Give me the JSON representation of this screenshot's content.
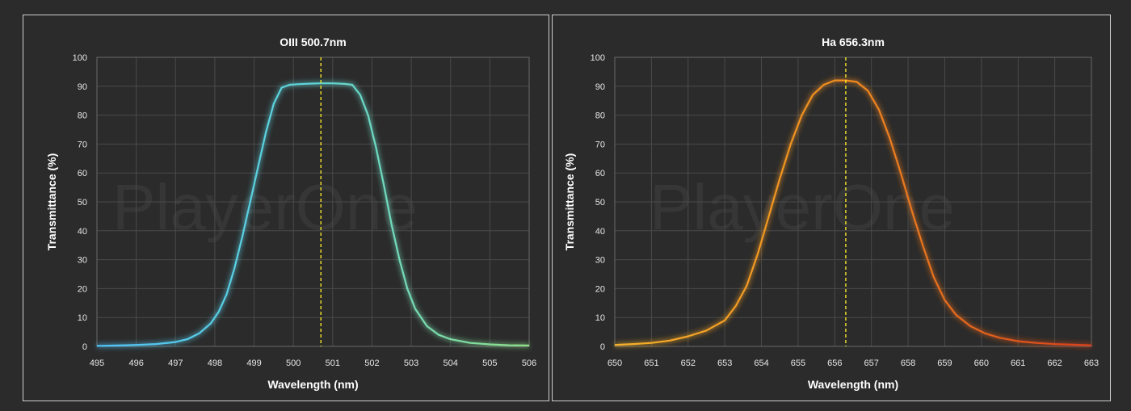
{
  "watermark": "PlayerOne",
  "chart_data": [
    {
      "type": "line",
      "title": "OIII 500.7nm",
      "xlabel": "Wavelength (nm)",
      "ylabel": "Transmittance (%)",
      "xlim": [
        495,
        506
      ],
      "ylim": [
        0,
        100
      ],
      "xticks": [
        495,
        496,
        497,
        498,
        499,
        500,
        501,
        502,
        503,
        504,
        505,
        506
      ],
      "yticks": [
        0,
        10,
        20,
        30,
        40,
        50,
        60,
        70,
        80,
        90,
        100
      ],
      "grid": true,
      "center_line": 500.7,
      "center_line_color": "#f5e62a",
      "gradient": [
        "#4fc3f7",
        "#5fd6d8",
        "#8fe08a"
      ],
      "series": [
        {
          "x": [
            495,
            495.5,
            496,
            496.5,
            497,
            497.3,
            497.6,
            497.9,
            498.1,
            498.3,
            498.5,
            498.7,
            498.9,
            499.1,
            499.3,
            499.5,
            499.7,
            499.9,
            500.1,
            500.4,
            500.7,
            501.0,
            501.3,
            501.5,
            501.7,
            501.9,
            502.1,
            502.3,
            502.5,
            502.7,
            502.9,
            503.1,
            503.4,
            503.7,
            504.0,
            504.5,
            505,
            505.5,
            506
          ],
          "y": [
            0.2,
            0.3,
            0.5,
            0.8,
            1.5,
            2.5,
            4.5,
            8,
            12,
            18,
            27,
            38,
            50,
            62,
            74,
            84,
            89.5,
            90.5,
            90.7,
            90.9,
            91,
            91,
            90.8,
            90.5,
            87,
            80,
            69,
            56,
            42,
            30,
            20,
            13,
            7,
            4,
            2.5,
            1.2,
            0.7,
            0.4,
            0.3
          ]
        }
      ]
    },
    {
      "type": "line",
      "title": "Ha 656.3nm",
      "xlabel": "Wavelength (nm)",
      "ylabel": "Transmittance (%)",
      "xlim": [
        650,
        663
      ],
      "ylim": [
        0,
        100
      ],
      "xticks": [
        650,
        651,
        652,
        653,
        654,
        655,
        656,
        657,
        658,
        659,
        660,
        661,
        662,
        663
      ],
      "yticks": [
        0,
        10,
        20,
        30,
        40,
        50,
        60,
        70,
        80,
        90,
        100
      ],
      "grid": true,
      "center_line": 656.3,
      "center_line_color": "#f5e62a",
      "gradient": [
        "#f5b12a",
        "#f08a1e",
        "#d9401a"
      ],
      "series": [
        {
          "x": [
            650,
            650.5,
            651,
            651.5,
            652,
            652.5,
            653,
            653.3,
            653.6,
            653.9,
            654.2,
            654.5,
            654.8,
            655.1,
            655.4,
            655.7,
            656.0,
            656.3,
            656.6,
            656.9,
            657.2,
            657.5,
            657.8,
            658.1,
            658.4,
            658.7,
            659.0,
            659.3,
            659.7,
            660.1,
            660.5,
            661,
            661.5,
            662,
            662.5,
            663
          ],
          "y": [
            0.5,
            0.8,
            1.2,
            2,
            3.5,
            5.5,
            9,
            14,
            21,
            32,
            45,
            58,
            70,
            80,
            87,
            90.5,
            92,
            92,
            91.5,
            88.5,
            82,
            72,
            60,
            47,
            35,
            24,
            16,
            11,
            7,
            4.5,
            3,
            1.8,
            1.2,
            0.8,
            0.6,
            0.4
          ]
        }
      ]
    }
  ]
}
